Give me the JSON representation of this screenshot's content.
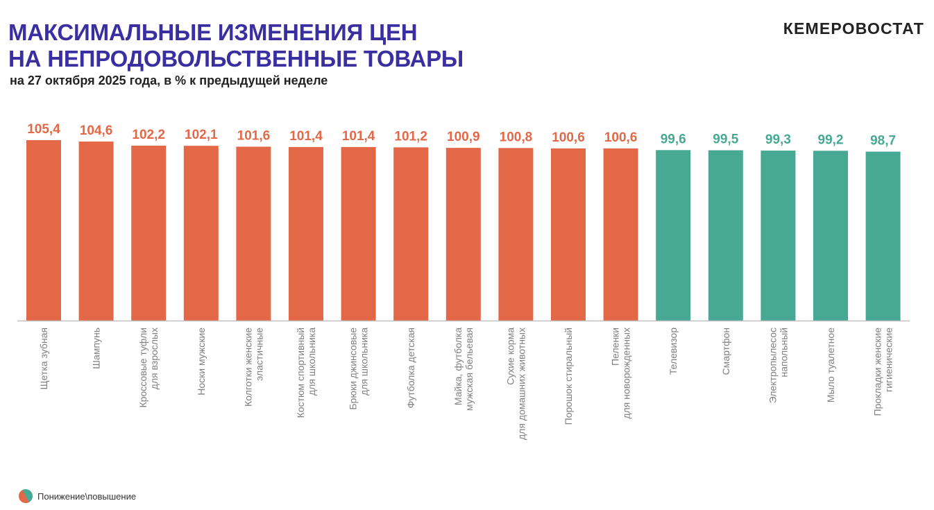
{
  "header": {
    "title_lines": [
      "МАКСИМАЛЬНЫЕ ИЗМЕНЕНИЯ ЦЕН",
      "НА НЕПРОДОВОЛЬСТВЕННЫЕ ТОВАРЫ"
    ],
    "subtitle": "на 27 октября 2025 года, в % к предыдущей неделе",
    "brand": "КЕМЕРОВОСТАТ"
  },
  "legend": {
    "label": "Понижение\\повышение"
  },
  "colors": {
    "title": "#3A2FA0",
    "increase": "#E26847",
    "decrease": "#47A994",
    "axis": "#BFBFBF",
    "category_text": "#808080"
  },
  "chart_data": {
    "type": "bar",
    "title": "МАКСИМАЛЬНЫЕ ИЗМЕНЕНИЯ ЦЕН НА НЕПРОДОВОЛЬСТВЕННЫЕ ТОВАРЫ",
    "subtitle": "на 27 октября 2025 года, в % к предыдущей неделе",
    "xlabel": "",
    "ylabel": "",
    "ylim": [
      0,
      105.4
    ],
    "grid": false,
    "legend_position": "bottom-left",
    "categories": [
      [
        "Щетка зубная"
      ],
      [
        "Шампунь"
      ],
      [
        "Кроссовые туфли",
        "для взрослых"
      ],
      [
        "Носки мужские"
      ],
      [
        "Колготки женские",
        "эластичные"
      ],
      [
        "Костюм спортивный",
        "для школьника"
      ],
      [
        "Брюки джинсовые",
        "для школьника"
      ],
      [
        "Футболка детская"
      ],
      [
        "Майка, футболка",
        "мужская бельевая"
      ],
      [
        "Сухие корма",
        "для домашних животных"
      ],
      [
        "Порошок стиральный"
      ],
      [
        "Пеленки",
        "для новорожденных"
      ],
      [
        "Телевизор"
      ],
      [
        "Смартфон"
      ],
      [
        "Электропылесос",
        "напольный"
      ],
      [
        "Мыло туалетное"
      ],
      [
        "Прокладки женские",
        "гигиенические"
      ]
    ],
    "values": [
      105.4,
      104.6,
      102.2,
      102.1,
      101.6,
      101.4,
      101.4,
      101.2,
      100.9,
      100.8,
      100.6,
      100.6,
      99.6,
      99.5,
      99.3,
      99.2,
      98.7
    ],
    "labels": [
      "105,4",
      "104,6",
      "102,2",
      "102,1",
      "101,6",
      "101,4",
      "101,4",
      "101,2",
      "100,9",
      "100,8",
      "100,6",
      "100,6",
      "99,6",
      "99,5",
      "99,3",
      "99,2",
      "98,7"
    ],
    "threshold": 100
  }
}
